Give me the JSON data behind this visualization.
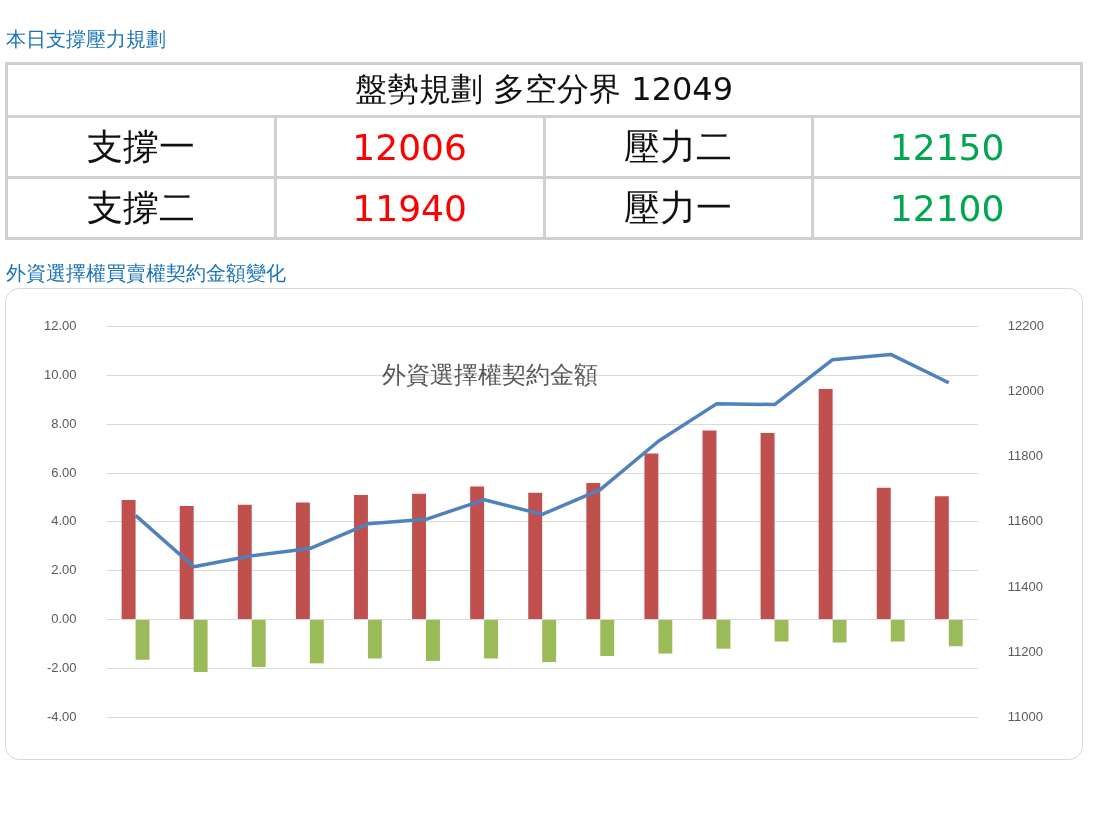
{
  "chart_data": [
    {
      "type": "other",
      "title": "本日支撐壓力規劃",
      "annotations": [
        "盤勢規劃 多空分界 12049",
        "支撐一",
        "12006",
        "壓力二",
        "12150",
        "支撐二",
        "11940",
        "壓力一",
        "12100"
      ]
    },
    {
      "type": "bar",
      "title": "外資選擇權買賣權契約金額變化",
      "subtitle": "外資選擇權契約金額",
      "categories": [
        null,
        null,
        null,
        null,
        null,
        null,
        null,
        null,
        null,
        null,
        null,
        null,
        null,
        null,
        null
      ],
      "series": [
        {
          "type": "bar",
          "color": "#c0504d",
          "values": [
            4.9,
            4.65,
            4.7,
            4.8,
            5.1,
            5.15,
            5.45,
            5.2,
            5.6,
            6.8,
            7.75,
            7.65,
            9.45,
            5.4,
            5.05
          ]
        },
        {
          "type": "bar",
          "color": "#9bbb59",
          "values": [
            -1.65,
            -2.15,
            -1.95,
            -1.8,
            -1.6,
            -1.7,
            -1.6,
            -1.75,
            -1.5,
            -1.4,
            -1.2,
            -0.9,
            -0.95,
            -0.9,
            -1.1
          ]
        },
        {
          "type": "line",
          "axis": "y2",
          "color": "#4f81bd",
          "values": [
            11620,
            11462,
            11496,
            11518,
            11594,
            11608,
            11668,
            11623,
            11699,
            11848,
            11963,
            11961,
            12099,
            12115,
            12028
          ]
        }
      ],
      "ylim": [
        -4,
        12
      ],
      "yticks": [
        {
          "value": -4,
          "label": "-4.00"
        },
        {
          "value": -2,
          "label": "-2.00"
        },
        {
          "value": 0,
          "label": "0.00"
        },
        {
          "value": 2,
          "label": "2.00"
        },
        {
          "value": 4,
          "label": "4.00"
        },
        {
          "value": 6,
          "label": "6.00"
        },
        {
          "value": 8,
          "label": "8.00"
        },
        {
          "value": 10,
          "label": "10.00"
        },
        {
          "value": 12,
          "label": "12.00"
        }
      ],
      "y2lim": [
        11000,
        12200
      ],
      "y2ticks": [
        11000,
        11200,
        11400,
        11600,
        11800,
        12000,
        12200
      ],
      "grid": "y"
    }
  ]
}
